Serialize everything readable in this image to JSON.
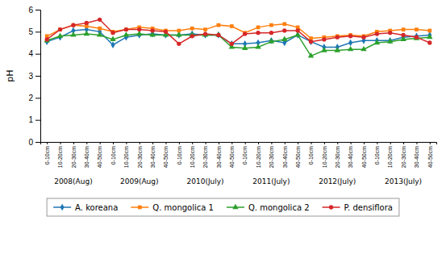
{
  "chart_data": {
    "type": "line",
    "ylabel": "pH",
    "categories": [
      "0-10cm",
      "10-20cm",
      "20-30cm",
      "30-40cm",
      "40-50cm",
      "0-10cm",
      "10-20cm",
      "20-30cm",
      "30-40cm",
      "40-50cm",
      "0-10cm",
      "10-20cm",
      "20-30cm",
      "30-40cm",
      "40-50cm",
      "0-10cm",
      "10-20cm",
      "20-30cm",
      "30-40cm",
      "40-50cm",
      "0-10cm",
      "10-20cm",
      "20-30cm",
      "30-40cm",
      "40-50cm",
      "0-10cm",
      "10-20cm",
      "20-30cm",
      "30-40cm",
      "40-50cm"
    ],
    "groups": [
      "2008(Aug)",
      "2009(Aug)",
      "2010(July)",
      "2011(July)",
      "2012(July)",
      "2013(July)"
    ],
    "series": [
      {
        "name": "A. koreana",
        "marker": "diamond",
        "values": [
          4.55,
          4.75,
          5.05,
          5.1,
          5.0,
          4.4,
          4.75,
          4.85,
          4.9,
          4.85,
          4.85,
          4.9,
          4.85,
          4.85,
          4.45,
          4.45,
          4.5,
          4.6,
          4.5,
          4.85,
          4.55,
          4.3,
          4.3,
          4.5,
          4.6,
          4.6,
          4.6,
          4.75,
          4.8,
          4.85
        ]
      },
      {
        "name": "Q. mongolica 1",
        "marker": "square",
        "values": [
          4.8,
          5.1,
          5.3,
          5.25,
          5.15,
          5.0,
          5.1,
          5.2,
          5.15,
          5.05,
          5.05,
          5.15,
          5.1,
          5.3,
          5.25,
          4.95,
          5.2,
          5.3,
          5.35,
          5.2,
          4.7,
          4.75,
          4.8,
          4.85,
          4.8,
          5.0,
          5.05,
          5.1,
          5.1,
          5.05
        ]
      },
      {
        "name": "Q. mongolica 2",
        "marker": "triangle",
        "values": [
          4.6,
          4.8,
          4.85,
          4.9,
          4.85,
          4.65,
          4.85,
          4.9,
          4.85,
          4.85,
          4.85,
          4.85,
          4.85,
          4.85,
          4.3,
          4.25,
          4.3,
          4.55,
          4.65,
          4.85,
          3.9,
          4.15,
          4.15,
          4.2,
          4.2,
          4.5,
          4.55,
          4.65,
          4.7,
          4.75
        ]
      },
      {
        "name": "P. densiflora",
        "marker": "circle",
        "values": [
          4.65,
          5.1,
          5.3,
          5.4,
          5.55,
          4.95,
          5.1,
          5.1,
          5.05,
          5.0,
          4.45,
          4.8,
          4.9,
          4.85,
          4.45,
          4.9,
          4.95,
          4.95,
          5.05,
          5.05,
          4.55,
          4.65,
          4.75,
          4.8,
          4.75,
          4.9,
          4.95,
          4.85,
          4.75,
          4.5
        ]
      }
    ],
    "ylim": [
      0,
      6
    ],
    "yticks": [
      0,
      1,
      2,
      3,
      4,
      5,
      6
    ],
    "grid": false,
    "legend": "bottom"
  }
}
